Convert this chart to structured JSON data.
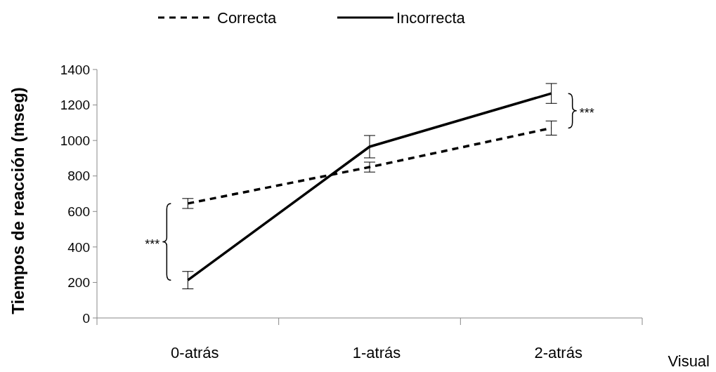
{
  "chart_data": {
    "type": "line",
    "ylabel": "Tiempos de reacción (mseg)",
    "xlabel": "Visual",
    "categories": [
      "0-atrás",
      "1-atrás",
      "2-atrás"
    ],
    "series": [
      {
        "name": "Correcta",
        "color": "#000000",
        "line_style": "dashed",
        "values": [
          645,
          850,
          1070
        ],
        "errors": [
          28,
          28,
          40
        ]
      },
      {
        "name": "Incorrecta",
        "color": "#000000",
        "line_style": "solid",
        "values": [
          213,
          965,
          1265
        ],
        "errors": [
          49,
          63,
          56
        ]
      }
    ],
    "ylim": [
      0,
      1400
    ],
    "yticks": [
      0,
      200,
      400,
      600,
      800,
      1000,
      1200,
      1400
    ],
    "legend": "top",
    "grid": false,
    "marker": "none",
    "annotations": [
      "***",
      "***"
    ]
  }
}
